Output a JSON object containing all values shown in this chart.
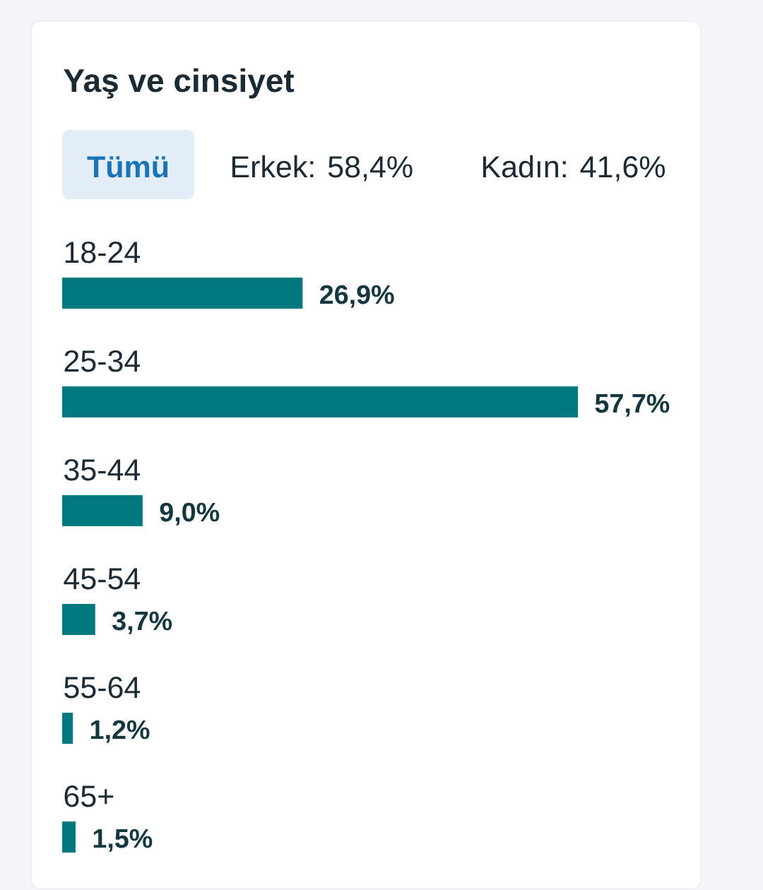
{
  "chart_data": {
    "type": "bar",
    "orientation": "horizontal",
    "title": "Yaş ve cinsiyet",
    "annotations": [
      "Tümü",
      "Erkek: 58,4%",
      "Kadın: 41,6%"
    ],
    "categories": [
      "18-24",
      "25-34",
      "35-44",
      "45-54",
      "55-64",
      "65+"
    ],
    "values": [
      26.9,
      57.7,
      9.0,
      3.7,
      1.2,
      1.5
    ],
    "value_labels": [
      "26,9%",
      "57,7%",
      "9,0%",
      "3,7%",
      "1,2%",
      "1,5%"
    ],
    "color": "#007880"
  }
}
